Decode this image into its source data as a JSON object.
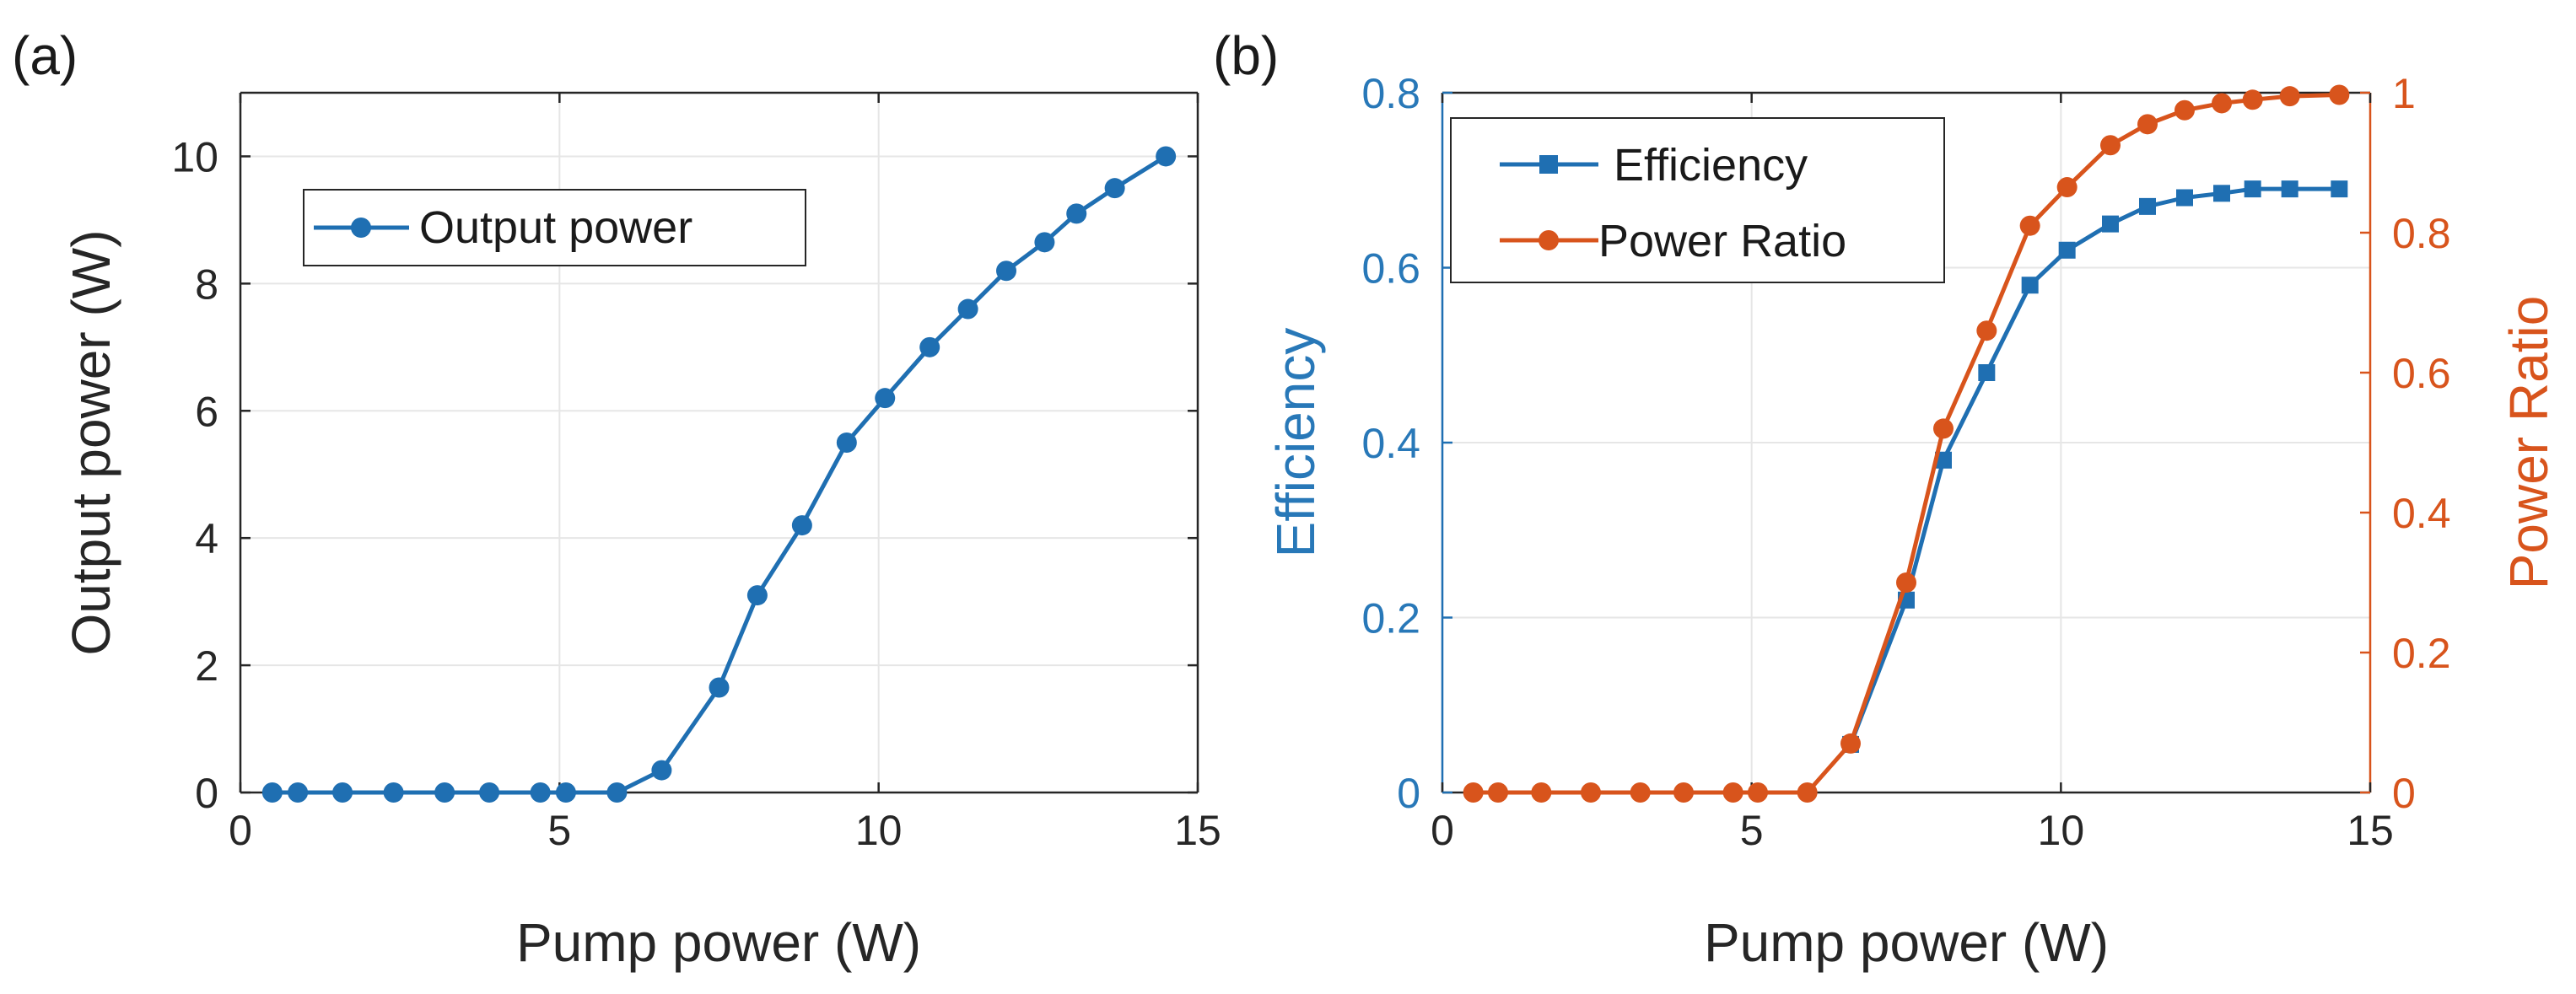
{
  "colors": {
    "blue": "#1f6fb2",
    "orange": "#d8541c",
    "axis": "#262626",
    "grid": "#e6e6e6"
  },
  "chart_data": [
    {
      "panel_label": "(a)",
      "type": "line",
      "xlabel": "Pump power (W)",
      "ylabel": "Output power (W)",
      "xlim": [
        0,
        15
      ],
      "ylim": [
        0,
        11
      ],
      "xticks": [
        0,
        5,
        10,
        15
      ],
      "yticks": [
        0,
        2,
        4,
        6,
        8,
        10
      ],
      "grid": true,
      "legend": {
        "placement": "top-left"
      },
      "series": [
        {
          "name": "Output power",
          "color": "#1f6fb2",
          "marker": "circle",
          "x": [
            0.5,
            0.9,
            1.6,
            2.4,
            3.2,
            3.9,
            4.7,
            5.1,
            5.9,
            6.6,
            7.5,
            8.1,
            8.8,
            9.5,
            10.1,
            10.8,
            11.4,
            12.0,
            12.6,
            13.1,
            13.7,
            14.5
          ],
          "y": [
            0,
            0,
            0,
            0,
            0,
            0,
            0,
            0,
            0,
            0.35,
            1.65,
            3.1,
            4.2,
            5.5,
            6.2,
            7.0,
            7.6,
            8.2,
            8.65,
            9.1,
            9.5,
            10.0
          ]
        }
      ]
    },
    {
      "panel_label": "(b)",
      "type": "line",
      "xlabel": "Pump power (W)",
      "ylabel": "Efficiency",
      "ylabel_right": "Power Ratio",
      "xlim": [
        0,
        15
      ],
      "ylim": [
        0,
        0.8
      ],
      "ylim_right": [
        0,
        1.0
      ],
      "xticks": [
        0,
        5,
        10,
        15
      ],
      "yticks": [
        0,
        0.2,
        0.4,
        0.6,
        0.8
      ],
      "yticks_right": [
        0,
        0.2,
        0.4,
        0.6,
        0.8,
        1.0
      ],
      "grid": true,
      "legend": {
        "placement": "top-left"
      },
      "series": [
        {
          "name": "Efficiency",
          "axis": "left",
          "color": "#1f6fb2",
          "marker": "square",
          "x": [
            6.6,
            7.5,
            8.1,
            8.8,
            9.5,
            10.1,
            10.8,
            11.4,
            12.0,
            12.6,
            13.1,
            13.7,
            14.5
          ],
          "y": [
            0.055,
            0.22,
            0.38,
            0.48,
            0.58,
            0.62,
            0.65,
            0.67,
            0.68,
            0.685,
            0.69,
            0.69,
            0.69
          ]
        },
        {
          "name": "Power Ratio",
          "axis": "right",
          "color": "#d8541c",
          "marker": "circle",
          "x": [
            0.5,
            0.9,
            1.6,
            2.4,
            3.2,
            3.9,
            4.7,
            5.1,
            5.9,
            6.6,
            7.5,
            8.1,
            8.8,
            9.5,
            10.1,
            10.8,
            11.4,
            12.0,
            12.6,
            13.1,
            13.7,
            14.5
          ],
          "y": [
            0,
            0,
            0,
            0,
            0,
            0,
            0,
            0,
            0,
            0.07,
            0.3,
            0.52,
            0.66,
            0.81,
            0.865,
            0.925,
            0.955,
            0.975,
            0.985,
            0.99,
            0.995,
            0.997
          ]
        }
      ]
    }
  ]
}
